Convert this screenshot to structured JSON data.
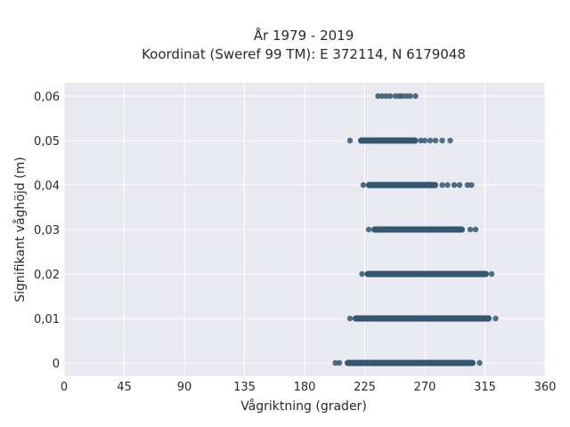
{
  "chart_data": {
    "type": "scatter",
    "title": "År 1979 - 2019",
    "subtitle": "Koordinat (Sweref 99 TM): E 372114, N 6179048",
    "xlabel": "Vågriktning (grader)",
    "ylabel": "Signifikant våghöjd (m)",
    "xlim": [
      0,
      360
    ],
    "ylim": [
      -0.003,
      0.063
    ],
    "xticks": [
      0,
      45,
      90,
      135,
      180,
      225,
      270,
      315,
      360
    ],
    "yticks": [
      0,
      0.01,
      0.02,
      0.03,
      0.04,
      0.05,
      0.06
    ],
    "ytick_labels": [
      "0",
      "0,01",
      "0,02",
      "0,03",
      "0,04",
      "0,05",
      "0,06"
    ],
    "grid": true,
    "point_color": "#34576f",
    "background_color": "#e9e9f1",
    "bands": [
      {
        "y": 0.06,
        "dense_range": [],
        "points": [
          235,
          238,
          241,
          244,
          248,
          251,
          253,
          256,
          259,
          263
        ]
      },
      {
        "y": 0.05,
        "dense_range": [
          220,
          265
        ],
        "points": [
          214,
          267,
          270,
          274,
          278,
          283,
          289
        ]
      },
      {
        "y": 0.04,
        "dense_range": [
          226,
          280
        ],
        "points": [
          224,
          283,
          287,
          292,
          296,
          302,
          305
        ]
      },
      {
        "y": 0.03,
        "dense_range": [
          230,
          300
        ],
        "points": [
          228,
          304,
          308
        ]
      },
      {
        "y": 0.02,
        "dense_range": [
          225,
          318
        ],
        "points": [
          223,
          320
        ]
      },
      {
        "y": 0.01,
        "dense_range": [
          216,
          320
        ],
        "points": [
          214,
          323
        ]
      },
      {
        "y": 0,
        "dense_range": [
          210,
          308
        ],
        "points": [
          203,
          206,
          311
        ]
      }
    ]
  }
}
